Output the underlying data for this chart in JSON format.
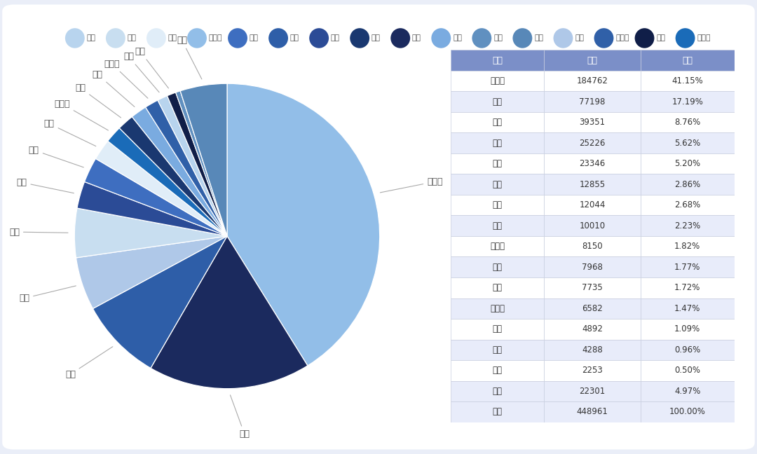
{
  "companies": [
    "比亚迪",
    "理想",
    "大众",
    "荣威",
    "宝马",
    "丰田",
    "别克",
    "本田",
    "沃尔沃",
    "吉利",
    "领克",
    "赛力斯",
    "奥迪",
    "腾势",
    "名爵",
    "其他"
  ],
  "values": [
    184762,
    77198,
    39351,
    25226,
    23346,
    12855,
    12044,
    10010,
    8150,
    7968,
    7735,
    6582,
    4892,
    4288,
    2253,
    22301
  ],
  "colors": {
    "比亚迪": "#92BEE8",
    "理想": "#1B2A5E",
    "大众": "#2E5EA8",
    "荣威": "#AFC8E8",
    "宝马": "#C8DEF0",
    "丰田": "#2B4B96",
    "别克": "#3E6EC0",
    "本田": "#E0EDF8",
    "沃尔沃": "#1A6BB8",
    "吉利": "#1A3870",
    "领克": "#7AABE0",
    "赛力斯": "#3060A8",
    "奥迪": "#B8D4EE",
    "腾势": "#101E48",
    "名爵": "#6090C0",
    "其他": "#5888B8"
  },
  "legend_order": [
    "奥迪",
    "宝马",
    "本田",
    "比亚迪",
    "别克",
    "大众",
    "丰田",
    "吉利",
    "理想",
    "领克",
    "名爵",
    "其他",
    "荣威",
    "赛力斯",
    "腾势",
    "沃尔沃"
  ],
  "table_rows": [
    [
      "比亚迪",
      "184762",
      "41.15%"
    ],
    [
      "理想",
      "77198",
      "17.19%"
    ],
    [
      "大众",
      "39351",
      "8.76%"
    ],
    [
      "荣威",
      "25226",
      "5.62%"
    ],
    [
      "宝马",
      "23346",
      "5.20%"
    ],
    [
      "丰田",
      "12855",
      "2.86%"
    ],
    [
      "别克",
      "12044",
      "2.68%"
    ],
    [
      "本田",
      "10010",
      "2.23%"
    ],
    [
      "沃尔沃",
      "8150",
      "1.82%"
    ],
    [
      "吉利",
      "7968",
      "1.77%"
    ],
    [
      "领克",
      "7735",
      "1.72%"
    ],
    [
      "赛力斯",
      "6582",
      "1.47%"
    ],
    [
      "奥迪",
      "4892",
      "1.09%"
    ],
    [
      "腾势",
      "4288",
      "0.96%"
    ],
    [
      "名爵",
      "2253",
      "0.50%"
    ],
    [
      "其他",
      "22301",
      "4.97%"
    ],
    [
      "合计",
      "448961",
      "100.00%"
    ]
  ],
  "table_headers": [
    "企业",
    "总计",
    "占比"
  ],
  "table_header_bg": "#7B8FC8",
  "table_even_bg": "#E8ECFA",
  "table_odd_bg": "#FFFFFF",
  "outer_bg": "#EAEEF8",
  "card_bg": "#FFFFFF"
}
